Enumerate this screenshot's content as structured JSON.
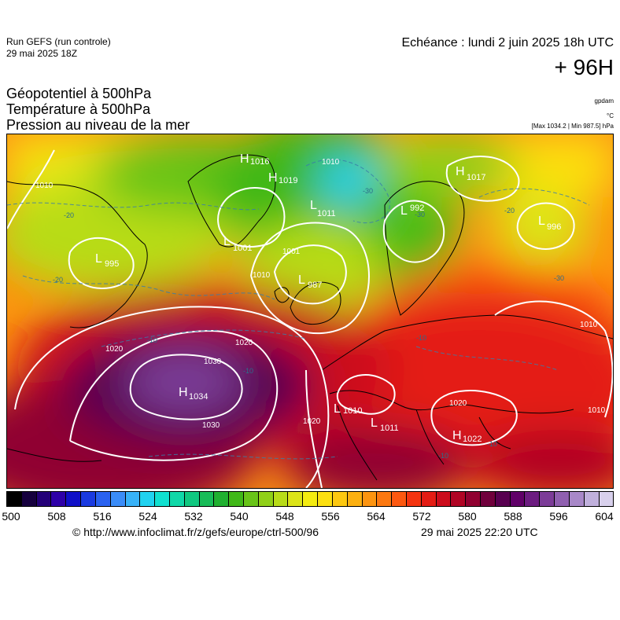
{
  "header": {
    "run_name": "Run GEFS (run controle)",
    "run_date": "29 mai 2025 18Z",
    "valid_time": "Echéance : lundi 2 juin 2025 18h UTC",
    "lead_time": "+ 96H"
  },
  "parameters": [
    "Géopotentiel à 500hPa",
    "Température à 500hPa",
    "Pression au niveau de la mer"
  ],
  "units": {
    "geopotential": "gpdam",
    "temperature": "°C",
    "pressure": "[Max 1034.2 | Min 987.5] hPa"
  },
  "map": {
    "pressure_systems": [
      {
        "type": "H",
        "value": "1034"
      },
      {
        "type": "L",
        "value": "987"
      },
      {
        "type": "L",
        "value": "995"
      },
      {
        "type": "L",
        "value": "1001"
      },
      {
        "type": "H",
        "value": "1019"
      },
      {
        "type": "H",
        "value": "1016"
      },
      {
        "type": "L",
        "value": "1011"
      },
      {
        "type": "H",
        "value": "1017"
      },
      {
        "type": "L",
        "value": "996"
      },
      {
        "type": "L",
        "value": "1010"
      },
      {
        "type": "L",
        "value": "1011"
      },
      {
        "type": "H",
        "value": "1022"
      },
      {
        "type": "L",
        "value": "992"
      }
    ],
    "isobar_labels": [
      "1030",
      "1030",
      "1020",
      "1020",
      "1020",
      "1020",
      "1010",
      "1010",
      "1010",
      "1010",
      "1010",
      "1001"
    ],
    "temperature_labels": [
      "-20",
      "-20",
      "-20",
      "-30",
      "-30",
      "-30",
      "-10",
      "-10",
      "-10",
      "-10",
      "-10"
    ]
  },
  "colorbar": {
    "colors": [
      "#000000",
      "#16003e",
      "#240078",
      "#2e00a8",
      "#1010c8",
      "#1a3ae0",
      "#2a62f0",
      "#3a8cf8",
      "#38b2f8",
      "#20d2f0",
      "#10e0d0",
      "#10d8a8",
      "#10c880",
      "#18bc58",
      "#20b030",
      "#40b818",
      "#68c418",
      "#90d018",
      "#b8dc18",
      "#dce418",
      "#f4ec10",
      "#fce010",
      "#fcc810",
      "#fcb010",
      "#fc9410",
      "#fc7810",
      "#fc5810",
      "#f43410",
      "#e41c14",
      "#cc0c1c",
      "#b00424",
      "#900030",
      "#70003c",
      "#580050",
      "#600068",
      "#6c1c80",
      "#7c3c98",
      "#9060b0",
      "#a888c8",
      "#c0b0dc",
      "#d8d0ec"
    ],
    "ticks": [
      "500",
      "508",
      "516",
      "524",
      "532",
      "540",
      "548",
      "556",
      "564",
      "572",
      "580",
      "588",
      "596",
      "604"
    ]
  },
  "footer": {
    "url": "© http://www.infoclimat.fr/z/gefs/europe/ctrl-500/96",
    "generated": "29 mai 2025 22:20 UTC"
  }
}
